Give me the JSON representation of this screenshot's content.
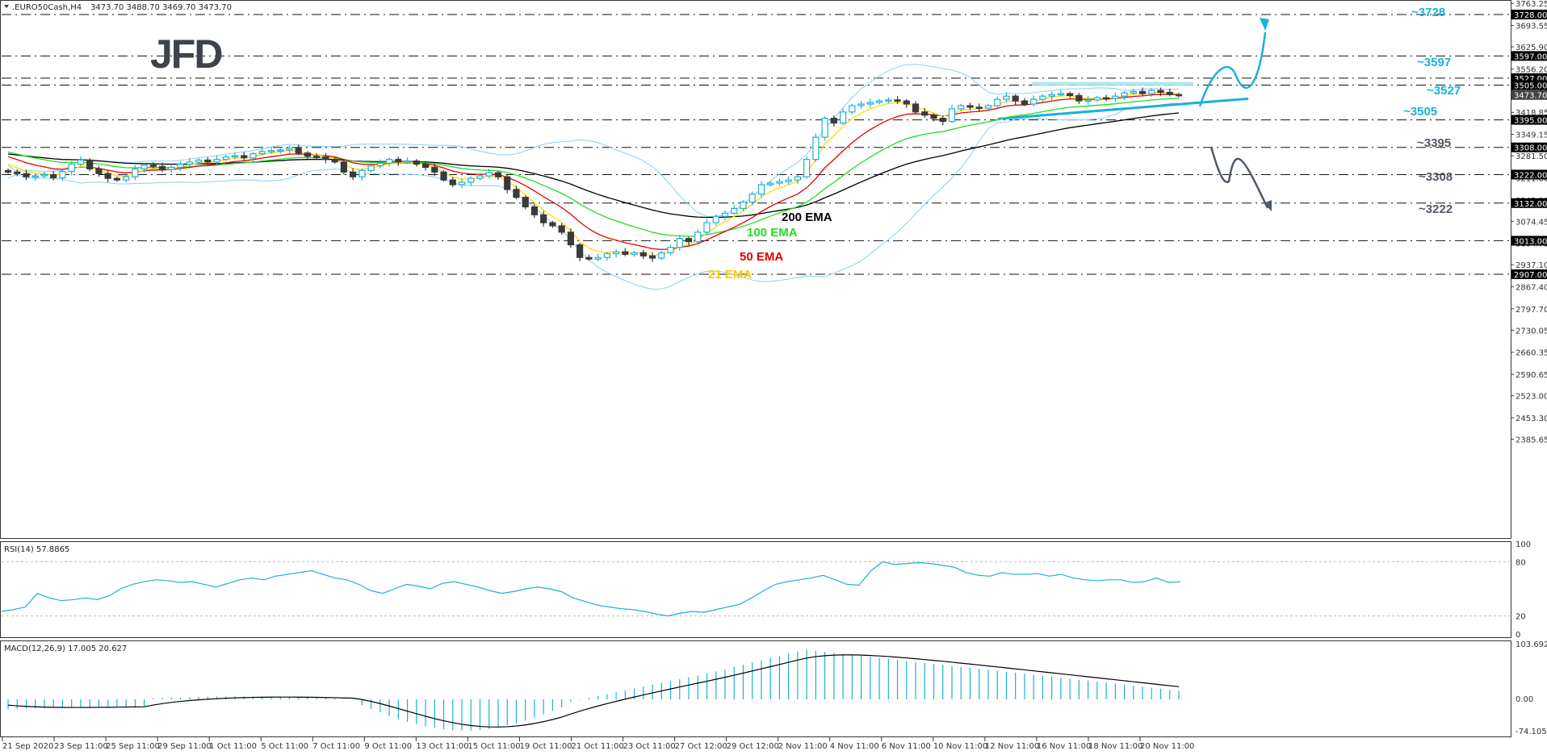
{
  "header": {
    "symbol": ".EURO50Cash,H4",
    "ohlc": "3473.70 3488.70 3469.70 3473.70",
    "collapse_icon": "triangle-down-icon"
  },
  "logo": {
    "text": "JFD"
  },
  "colors": {
    "bull": "#1cb0d8",
    "bear": "#3a3a3a",
    "ema21": "#ffdc00",
    "ema50": "#e00000",
    "ema100": "#22dd22",
    "ema200": "#000000",
    "bollinger": "#87cefa",
    "bull_scenario": "#1cb0d8",
    "bear_scenario": "#505a66",
    "rsi": "#1cb0d8",
    "macd_hist": "#1cb0d8",
    "macd_signal": "#000000",
    "level_tag_bg": "#000000",
    "price_tag_bg": "#444444"
  },
  "rsi": {
    "label": "RSI(14) 57.8865",
    "ticks": [
      "100",
      "80",
      "20",
      "0"
    ]
  },
  "macd": {
    "label": "MACD(12,26,9) 17.005 20.627",
    "ticks": [
      "103.692",
      "0.00",
      "-74.105"
    ]
  },
  "chart_data": {
    "type": "candlestick",
    "title": ".EURO50Cash,H4",
    "ohlc_last": {
      "open": 3473.7,
      "high": 3488.7,
      "low": 3469.7,
      "close": 3473.7
    },
    "price_axis_ticks": [
      "3763.25",
      "3693.55",
      "3625.90",
      "3556.20",
      "3488.55",
      "3418.85",
      "3349.15",
      "3281.50",
      "3211.80",
      "3142.10",
      "3074.45",
      "3004.75",
      "2937.10",
      "2867.40",
      "2797.70",
      "2730.05",
      "2660.35",
      "2590.65",
      "2523.00",
      "2453.30",
      "2385.65"
    ],
    "ylim": [
      2385.65,
      3763.25
    ],
    "horizontal_levels": [
      3728.0,
      3597.0,
      3527.0,
      3505.0,
      3395.0,
      3308.0,
      3222.0,
      3132.0,
      3013.0,
      2907.0
    ],
    "level_tags": [
      "3728.00",
      "3597.00",
      "3527.00",
      "3505.00",
      "3395.00",
      "3308.00",
      "3222.00",
      "3132.00",
      "3013.00",
      "2907.00"
    ],
    "current_price_tag": "3473.70",
    "annotations": {
      "upside": [
        {
          "label": "~3728",
          "value": 3728
        },
        {
          "label": "~3597",
          "value": 3597
        },
        {
          "label": "~3527",
          "value": 3527
        },
        {
          "label": "~3505",
          "value": 3505
        }
      ],
      "downside": [
        {
          "label": "~3395",
          "value": 3395
        },
        {
          "label": "~3308",
          "value": 3308
        },
        {
          "label": "~3222",
          "value": 3222
        }
      ],
      "ema_labels": [
        "200 EMA",
        "100 EMA",
        "50 EMA",
        "21 EMA"
      ]
    },
    "x_tick_labels": [
      "21 Sep 2020",
      "23 Sep 11:00",
      "25 Sep 11:00",
      "29 Sep 11:00",
      "1 Oct 11:00",
      "5 Oct 11:00",
      "7 Oct 11:00",
      "9 Oct 11:00",
      "13 Oct 11:00",
      "15 Oct 11:00",
      "19 Oct 11:00",
      "21 Oct 11:00",
      "23 Oct 11:00",
      "27 Oct 12:00",
      "29 Oct 12:00",
      "2 Nov 11:00",
      "4 Nov 11:00",
      "6 Nov 11:00",
      "10 Nov 11:00",
      "12 Nov 11:00",
      "16 Nov 11:00",
      "18 Nov 11:00",
      "20 Nov 11:00"
    ],
    "closes_approx": [
      3230,
      3225,
      3215,
      3218,
      3222,
      3212,
      3232,
      3255,
      3268,
      3240,
      3225,
      3210,
      3205,
      3215,
      3240,
      3252,
      3248,
      3238,
      3245,
      3255,
      3262,
      3268,
      3262,
      3270,
      3278,
      3282,
      3275,
      3288,
      3295,
      3298,
      3300,
      3305,
      3290,
      3280,
      3278,
      3270,
      3262,
      3230,
      3215,
      3235,
      3250,
      3258,
      3270,
      3262,
      3265,
      3255,
      3245,
      3230,
      3205,
      3190,
      3198,
      3210,
      3218,
      3228,
      3215,
      3175,
      3150,
      3120,
      3095,
      3070,
      3060,
      3040,
      3000,
      2960,
      2955,
      2960,
      2972,
      2978,
      2970,
      2975,
      2965,
      2958,
      2975,
      2992,
      3020,
      3010,
      3040,
      3070,
      3090,
      3100,
      3115,
      3135,
      3160,
      3190,
      3195,
      3200,
      3205,
      3215,
      3270,
      3340,
      3400,
      3385,
      3420,
      3440,
      3445,
      3450,
      3455,
      3458,
      3455,
      3445,
      3420,
      3410,
      3400,
      3390,
      3430,
      3440,
      3435,
      3432,
      3440,
      3460,
      3470,
      3455,
      3445,
      3460,
      3470,
      3475,
      3478,
      3472,
      3455,
      3458,
      3465,
      3462,
      3470,
      3480,
      3485,
      3478,
      3488,
      3482,
      3475,
      3473.7
    ],
    "ema_series_end": {
      "ema21": 3455,
      "ema50": 3390,
      "ema100": 3330,
      "ema200": 3285
    },
    "rsi_series_approx": [
      25,
      27,
      30,
      45,
      40,
      37,
      38,
      40,
      38,
      42,
      50,
      55,
      58,
      60,
      59,
      57,
      58,
      55,
      52,
      56,
      60,
      62,
      60,
      64,
      66,
      68,
      70,
      66,
      62,
      60,
      55,
      48,
      45,
      50,
      55,
      53,
      50,
      56,
      58,
      55,
      52,
      48,
      45,
      47,
      50,
      52,
      50,
      47,
      40,
      36,
      32,
      30,
      28,
      27,
      25,
      22,
      20,
      23,
      25,
      24,
      27,
      30,
      33,
      40,
      48,
      55,
      58,
      60,
      62,
      65,
      60,
      55,
      54,
      70,
      80,
      77,
      78,
      79,
      78,
      76,
      74,
      68,
      65,
      64,
      68,
      66,
      66,
      67,
      64,
      66,
      62,
      60,
      59,
      60,
      60,
      57,
      58,
      62,
      57,
      58
    ],
    "rsi_ylim": [
      0,
      100
    ],
    "macd_ylim": [
      -74.105,
      103.692
    ]
  },
  "pane_labels": {
    "main_ylabel": "",
    "xlabel": ""
  }
}
